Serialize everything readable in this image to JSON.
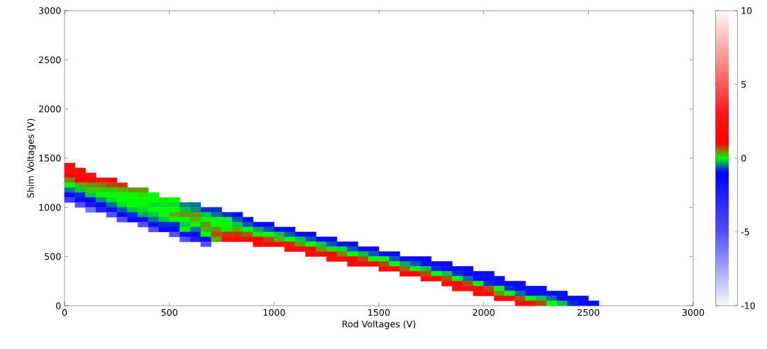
{
  "chart_data": {
    "type": "scatter",
    "xlabel": "Rod Voltages (V)",
    "ylabel": "Shim Voltages (V)",
    "marker": "square",
    "xlim": [
      0,
      3000
    ],
    "ylim": [
      0,
      3000
    ],
    "xticks": [
      0,
      500,
      1000,
      1500,
      2000,
      2500,
      3000
    ],
    "yticks": [
      0,
      500,
      1000,
      1500,
      2000,
      2500,
      3000
    ],
    "clim": [
      -10,
      10
    ],
    "cticks": [
      -10,
      -5,
      0,
      5,
      10
    ],
    "x": [
      25,
      25,
      25,
      25,
      25,
      25,
      25,
      25,
      75,
      75,
      75,
      75,
      75,
      75,
      75,
      75,
      125,
      125,
      125,
      125,
      125,
      125,
      125,
      125,
      175,
      175,
      175,
      175,
      175,
      175,
      175,
      225,
      225,
      225,
      225,
      225,
      225,
      225,
      225,
      275,
      275,
      275,
      275,
      275,
      275,
      275,
      275,
      325,
      325,
      325,
      325,
      325,
      325,
      325,
      375,
      375,
      375,
      375,
      375,
      375,
      375,
      375,
      425,
      425,
      425,
      425,
      425,
      425,
      425,
      425,
      475,
      475,
      475,
      475,
      475,
      475,
      475,
      525,
      525,
      525,
      525,
      525,
      525,
      525,
      525,
      575,
      575,
      575,
      575,
      575,
      575,
      575,
      575,
      625,
      625,
      625,
      625,
      625,
      625,
      625,
      625,
      675,
      675,
      675,
      675,
      675,
      675,
      675,
      675,
      725,
      725,
      725,
      725,
      725,
      725,
      725,
      775,
      775,
      775,
      775,
      775,
      775,
      825,
      825,
      825,
      825,
      825,
      825,
      875,
      875,
      875,
      875,
      875,
      925,
      925,
      925,
      925,
      925,
      975,
      975,
      975,
      975,
      975,
      1025,
      1025,
      1025,
      1025,
      1075,
      1075,
      1075,
      1075,
      1075,
      1125,
      1125,
      1125,
      1125,
      1175,
      1175,
      1175,
      1175,
      1175,
      1225,
      1225,
      1225,
      1225,
      1275,
      1275,
      1275,
      1275,
      1275,
      1325,
      1325,
      1325,
      1325,
      1375,
      1375,
      1375,
      1375,
      1375,
      1425,
      1425,
      1425,
      1425,
      1475,
      1475,
      1475,
      1475,
      1525,
      1525,
      1525,
      1525,
      1575,
      1575,
      1575,
      1575,
      1625,
      1625,
      1625,
      1625,
      1675,
      1675,
      1675,
      1675,
      1725,
      1725,
      1725,
      1725,
      1725,
      1775,
      1775,
      1775,
      1775,
      1825,
      1825,
      1825,
      1825,
      1825,
      1875,
      1875,
      1875,
      1875,
      1875,
      1925,
      1925,
      1925,
      1925,
      1925,
      1975,
      1975,
      1975,
      1975,
      1975,
      2025,
      2025,
      2025,
      2025,
      2025,
      2075,
      2075,
      2075,
      2075,
      2075,
      2125,
      2125,
      2125,
      2125,
      2175,
      2175,
      2175,
      2175,
      2175,
      2225,
      2225,
      2225,
      2225,
      2275,
      2275,
      2275,
      2275,
      2325,
      2325,
      2325,
      2375,
      2375,
      2375,
      2425,
      2425,
      2475,
      2475,
      2525
    ],
    "values": [
      1425,
      1375,
      1325,
      1275,
      1225,
      1175,
      1125,
      1075,
      1375,
      1325,
      1275,
      1225,
      1175,
      1125,
      1075,
      1025,
      1325,
      1275,
      1225,
      1175,
      1125,
      1075,
      1025,
      975,
      1275,
      1225,
      1175,
      1125,
      1075,
      1025,
      975,
      1275,
      1225,
      1175,
      1125,
      1075,
      1025,
      975,
      925,
      1225,
      1175,
      1125,
      1075,
      1025,
      975,
      925,
      875,
      1175,
      1125,
      1075,
      1025,
      975,
      925,
      875,
      1175,
      1125,
      1075,
      1025,
      975,
      925,
      875,
      825,
      1125,
      1075,
      1025,
      975,
      925,
      875,
      825,
      775,
      1075,
      1025,
      975,
      925,
      875,
      825,
      775,
      1075,
      1025,
      975,
      925,
      875,
      825,
      775,
      725,
      1025,
      975,
      925,
      875,
      825,
      775,
      725,
      675,
      1025,
      975,
      925,
      875,
      825,
      775,
      725,
      675,
      975,
      925,
      875,
      825,
      775,
      725,
      675,
      625,
      975,
      925,
      875,
      825,
      775,
      725,
      675,
      925,
      875,
      825,
      775,
      725,
      675,
      925,
      875,
      825,
      775,
      725,
      675,
      875,
      825,
      775,
      725,
      675,
      825,
      775,
      725,
      675,
      625,
      825,
      775,
      725,
      675,
      625,
      775,
      725,
      675,
      625,
      775,
      725,
      675,
      625,
      575,
      725,
      675,
      625,
      575,
      725,
      675,
      625,
      575,
      525,
      675,
      625,
      575,
      525,
      675,
      625,
      575,
      525,
      475,
      625,
      575,
      525,
      475,
      625,
      575,
      525,
      475,
      425,
      575,
      525,
      475,
      425,
      575,
      525,
      475,
      425,
      525,
      475,
      425,
      375,
      525,
      475,
      425,
      375,
      475,
      425,
      375,
      325,
      475,
      425,
      375,
      325,
      475,
      425,
      375,
      325,
      275,
      425,
      375,
      325,
      275,
      425,
      375,
      325,
      275,
      225,
      375,
      325,
      275,
      225,
      175,
      375,
      325,
      275,
      225,
      175,
      325,
      275,
      225,
      175,
      125,
      325,
      275,
      225,
      175,
      125,
      275,
      225,
      175,
      125,
      75,
      225,
      175,
      125,
      75,
      225,
      175,
      125,
      75,
      25,
      175,
      125,
      75,
      25,
      175,
      125,
      75,
      25,
      125,
      75,
      25,
      125,
      75,
      25,
      75,
      25,
      75,
      25,
      25
    ],
    "cvalues": [
      2,
      2,
      1.5,
      0.5,
      0,
      -0.5,
      -1.5,
      -4,
      2,
      2,
      1,
      0.3,
      -0.2,
      -0.8,
      -1.5,
      -5,
      2,
      1,
      0.4,
      0.2,
      -0.2,
      -1,
      -2,
      -6,
      2,
      0.5,
      0.2,
      0,
      -0.4,
      -1.5,
      -2.5,
      2,
      0.7,
      0.2,
      0,
      -0.1,
      -0.5,
      -1.5,
      -5,
      0.8,
      0.3,
      0,
      0,
      -0.1,
      -0.6,
      -1.5,
      -5,
      0.4,
      0,
      0,
      0,
      -0.2,
      -0.8,
      -1.5,
      0.4,
      0.1,
      0,
      0,
      -0.1,
      -0.3,
      -1.5,
      -5,
      0,
      0,
      -0.1,
      0,
      -0.2,
      -0.5,
      -1.5,
      -5,
      0.1,
      -0.1,
      0,
      0,
      -0.2,
      -0.8,
      -1.5,
      0,
      -0.1,
      0,
      0.3,
      0,
      -0.8,
      -1.5,
      -5,
      -0.4,
      -0.2,
      0.4,
      0,
      -0.2,
      0,
      -1.5,
      -5,
      -0.5,
      -0.4,
      0.4,
      0.3,
      0,
      -0.5,
      -1.5,
      -2.5,
      -0.8,
      -0.2,
      0,
      0.4,
      0.3,
      0,
      -1.5,
      -5,
      -0.8,
      -0.5,
      0,
      0,
      0.4,
      0.7,
      0.3,
      -0.8,
      0,
      0,
      0.1,
      0.8,
      2,
      -1.5,
      -0.6,
      -0.2,
      0.3,
      0.8,
      2,
      -1.5,
      -0.6,
      0,
      0.6,
      2,
      -1.5,
      -0.3,
      0.1,
      1,
      2,
      -1.5,
      -0.6,
      0,
      0.7,
      2,
      -1.5,
      -0.2,
      0.3,
      2,
      -1.5,
      -0.6,
      0,
      0.9,
      2,
      -1.5,
      -0.2,
      0.4,
      2,
      -1.5,
      -0.6,
      0,
      1,
      2,
      -1.5,
      -0.2,
      0.4,
      2,
      -1.5,
      -0.6,
      0.1,
      1.5,
      2,
      -1.5,
      -0.1,
      0.5,
      2,
      -1.5,
      -0.6,
      0,
      1.2,
      2,
      -1.5,
      -0.2,
      0.7,
      2,
      -1.5,
      -0.6,
      0,
      2,
      -1.5,
      0,
      0.7,
      2,
      -1.5,
      -0.6,
      0,
      2,
      -1.5,
      -0.3,
      0.6,
      2,
      -1.5,
      -0.6,
      0,
      2,
      -1.5,
      -1.5,
      -0.2,
      0.7,
      2,
      -1.5,
      -0.8,
      0,
      2,
      -1.5,
      -1.5,
      -0.2,
      0.7,
      2,
      -1.5,
      -0.8,
      0,
      2,
      2,
      -1.5,
      -1.5,
      -0.5,
      0.7,
      2,
      -1.5,
      -1.5,
      0,
      2,
      2,
      -1.5,
      -1.5,
      -0.8,
      0.7,
      2,
      -1.5,
      -1.5,
      0,
      0.4,
      2,
      -1.5,
      -0.8,
      0,
      2,
      -1.5,
      -1.5,
      -0.5,
      0.7,
      2,
      -1.5,
      -1.5,
      0,
      2,
      -1.5,
      -1.5,
      -0.2,
      0.7,
      -1.5,
      -0.5,
      0,
      -1.5,
      -1.5,
      -0.2,
      -1.5,
      -0.8,
      -1.5,
      -1.5,
      -1.5
    ]
  }
}
